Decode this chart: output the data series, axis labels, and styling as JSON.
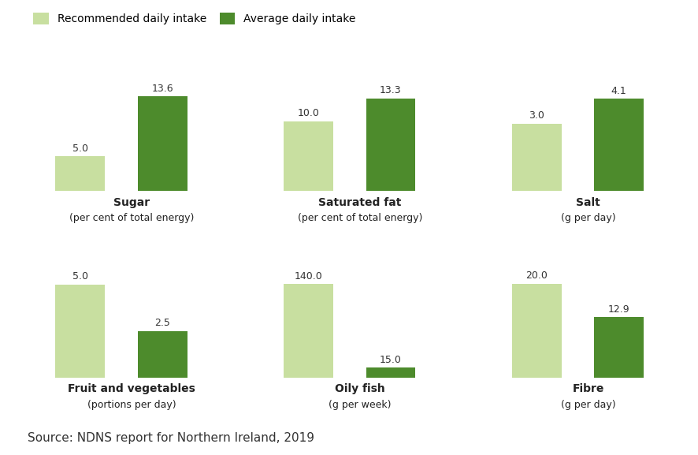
{
  "panels": [
    {
      "title": "Sugar",
      "subtitle": "(per cent of total energy)",
      "recommended": 5.0,
      "average": 13.6,
      "max_val": 15.5
    },
    {
      "title": "Saturated fat",
      "subtitle": "(per cent of total energy)",
      "recommended": 10.0,
      "average": 13.3,
      "max_val": 15.5
    },
    {
      "title": "Salt",
      "subtitle": "(g per day)",
      "recommended": 3.0,
      "average": 4.1,
      "max_val": 4.8
    },
    {
      "title": "Fruit and vegetables",
      "subtitle": "(portions per day)",
      "recommended": 5.0,
      "average": 2.5,
      "max_val": 5.8
    },
    {
      "title": "Oily fish",
      "subtitle": "(g per week)",
      "recommended": 140.0,
      "average": 15.0,
      "max_val": 162
    },
    {
      "title": "Fibre",
      "subtitle": "(g per day)",
      "recommended": 20.0,
      "average": 12.9,
      "max_val": 23
    }
  ],
  "color_recommended": "#c8dfa0",
  "color_average": "#4d8b2c",
  "legend_label_recommended": "Recommended daily intake",
  "legend_label_average": "Average daily intake",
  "source_text": "Source: NDNS report for Northern Ireland, 2019",
  "background_color": "#ffffff",
  "title_fontsize": 10,
  "subtitle_fontsize": 9,
  "label_fontsize": 9,
  "source_fontsize": 11,
  "source_color": "#333333"
}
